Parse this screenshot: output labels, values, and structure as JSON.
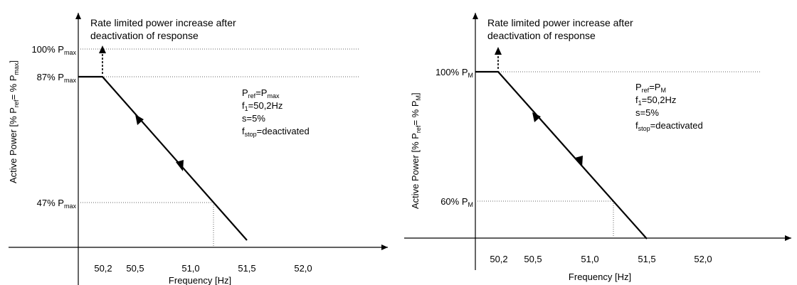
{
  "left": {
    "annotation": [
      "Rate limited power increase after",
      "deactivation of response"
    ],
    "y_axis_label": {
      "base": "Active Power [% P",
      "s1": "ref",
      "mid": "= % P",
      "s2": "max",
      "end": "]"
    },
    "y_levels": [
      {
        "text": "100% P",
        "sub": "max"
      },
      {
        "text": "87% P",
        "sub": "max"
      },
      {
        "text": "47% P",
        "sub": "max"
      }
    ],
    "params": [
      {
        "a": "P",
        "a_sub": "ref",
        "b": "=P",
        "b_sub": "max"
      },
      {
        "a": "f",
        "a_sub": "1",
        "b": "=50,2Hz",
        "b_sub": ""
      },
      {
        "a": "s=5%",
        "a_sub": "",
        "b": "",
        "b_sub": ""
      },
      {
        "a": "f",
        "a_sub": "stop",
        "b": "=deactivated",
        "b_sub": ""
      }
    ],
    "x_ticks": [
      "50,2",
      "50,5",
      "51,0",
      "51,5",
      "52,0"
    ],
    "x_axis_label": "Frequency [Hz]"
  },
  "right": {
    "annotation": [
      "Rate limited power increase after",
      "deactivation of response"
    ],
    "y_axis_label": {
      "base": "Active Power [% P",
      "s1": "ref",
      "mid": "= % P",
      "s2": "M",
      "end": "]"
    },
    "y_levels": [
      {
        "text": "100% P",
        "sub": "M"
      },
      {
        "text": "60% P",
        "sub": "M"
      }
    ],
    "params": [
      {
        "a": "P",
        "a_sub": "ref",
        "b": "=P",
        "b_sub": "M"
      },
      {
        "a": "f",
        "a_sub": "1",
        "b": "=50,2Hz",
        "b_sub": ""
      },
      {
        "a": "s=5%",
        "a_sub": "",
        "b": "",
        "b_sub": ""
      },
      {
        "a": "f",
        "a_sub": "stop",
        "b": "=deactivated",
        "b_sub": ""
      }
    ],
    "x_ticks": [
      "50,2",
      "50,5",
      "51,0",
      "51,5",
      "52,0"
    ],
    "x_axis_label": "Frequency [Hz]"
  }
}
